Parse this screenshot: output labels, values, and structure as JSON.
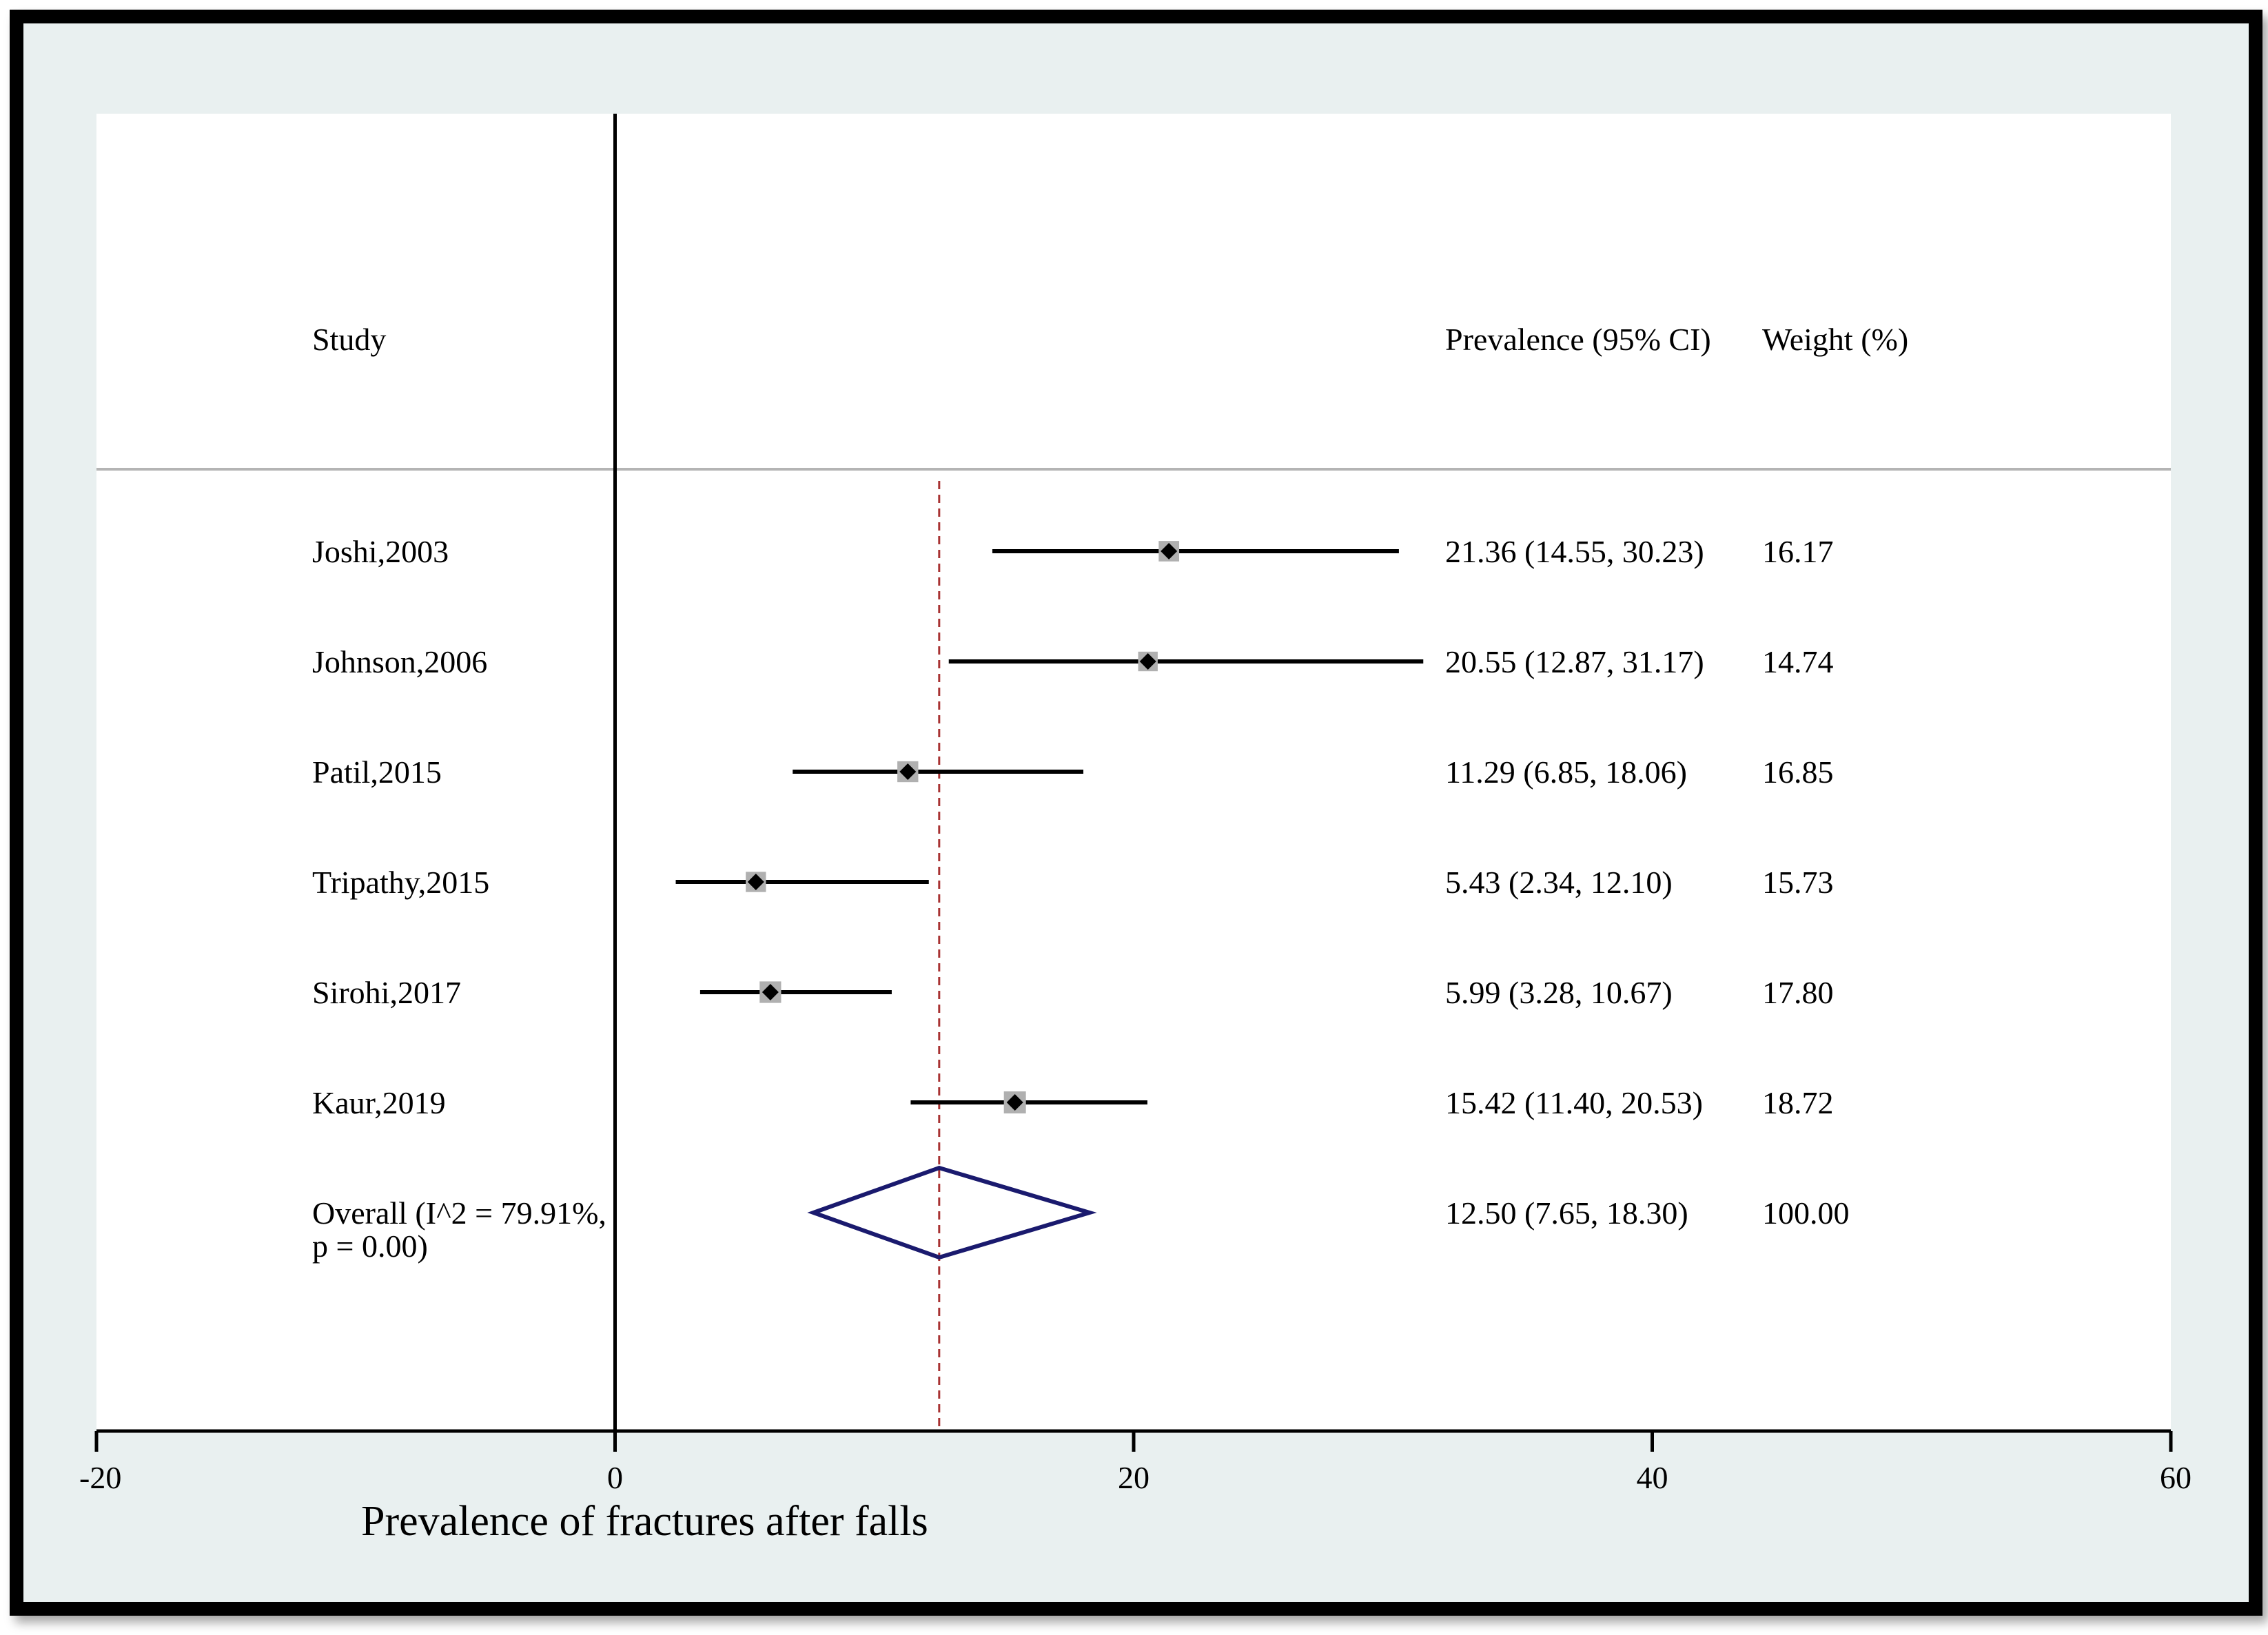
{
  "chart_data": {
    "type": "forest",
    "xlabel": "Prevalence of fractures after falls",
    "xlim": [
      -20,
      60
    ],
    "xticks": [
      -20,
      0,
      20,
      40,
      60
    ],
    "headers": {
      "study": "Study",
      "estimate": "Prevalence (95% CI)",
      "weight": "Weight (%)"
    },
    "studies": [
      {
        "name": "Joshi,2003",
        "es": 21.36,
        "lo": 14.55,
        "hi": 30.23,
        "ci_text": "21.36 (14.55, 30.23)",
        "weight": "16.17"
      },
      {
        "name": "Johnson,2006",
        "es": 20.55,
        "lo": 12.87,
        "hi": 31.17,
        "ci_text": "20.55 (12.87, 31.17)",
        "weight": "14.74"
      },
      {
        "name": "Patil,2015",
        "es": 11.29,
        "lo": 6.85,
        "hi": 18.06,
        "ci_text": "11.29 (6.85, 18.06)",
        "weight": "16.85"
      },
      {
        "name": "Tripathy,2015",
        "es": 5.43,
        "lo": 2.34,
        "hi": 12.1,
        "ci_text": "5.43 (2.34, 12.10)",
        "weight": "15.73"
      },
      {
        "name": "Sirohi,2017",
        "es": 5.99,
        "lo": 3.28,
        "hi": 10.67,
        "ci_text": "5.99 (3.28, 10.67)",
        "weight": "17.80"
      },
      {
        "name": "Kaur,2019",
        "es": 15.42,
        "lo": 11.4,
        "hi": 20.53,
        "ci_text": "15.42 (11.40, 20.53)",
        "weight": "18.72"
      }
    ],
    "overall": {
      "name_line1": "Overall (I^2 = 79.91%,",
      "name_line2": "p = 0.00)",
      "es": 12.5,
      "lo": 7.65,
      "hi": 18.3,
      "ci_text": "12.50 (7.65, 18.30)",
      "weight": "100.00"
    },
    "null_line": 0,
    "colors": {
      "frame_background": "#e9f0f0",
      "plot_background": "#ffffff",
      "ci_line": "#000000",
      "weight_box": "#b0b0b0",
      "point": "#000000",
      "overall_diamond": "#1a1a6e",
      "overall_line": "#a83232",
      "separator": "#b4b4b4"
    }
  }
}
